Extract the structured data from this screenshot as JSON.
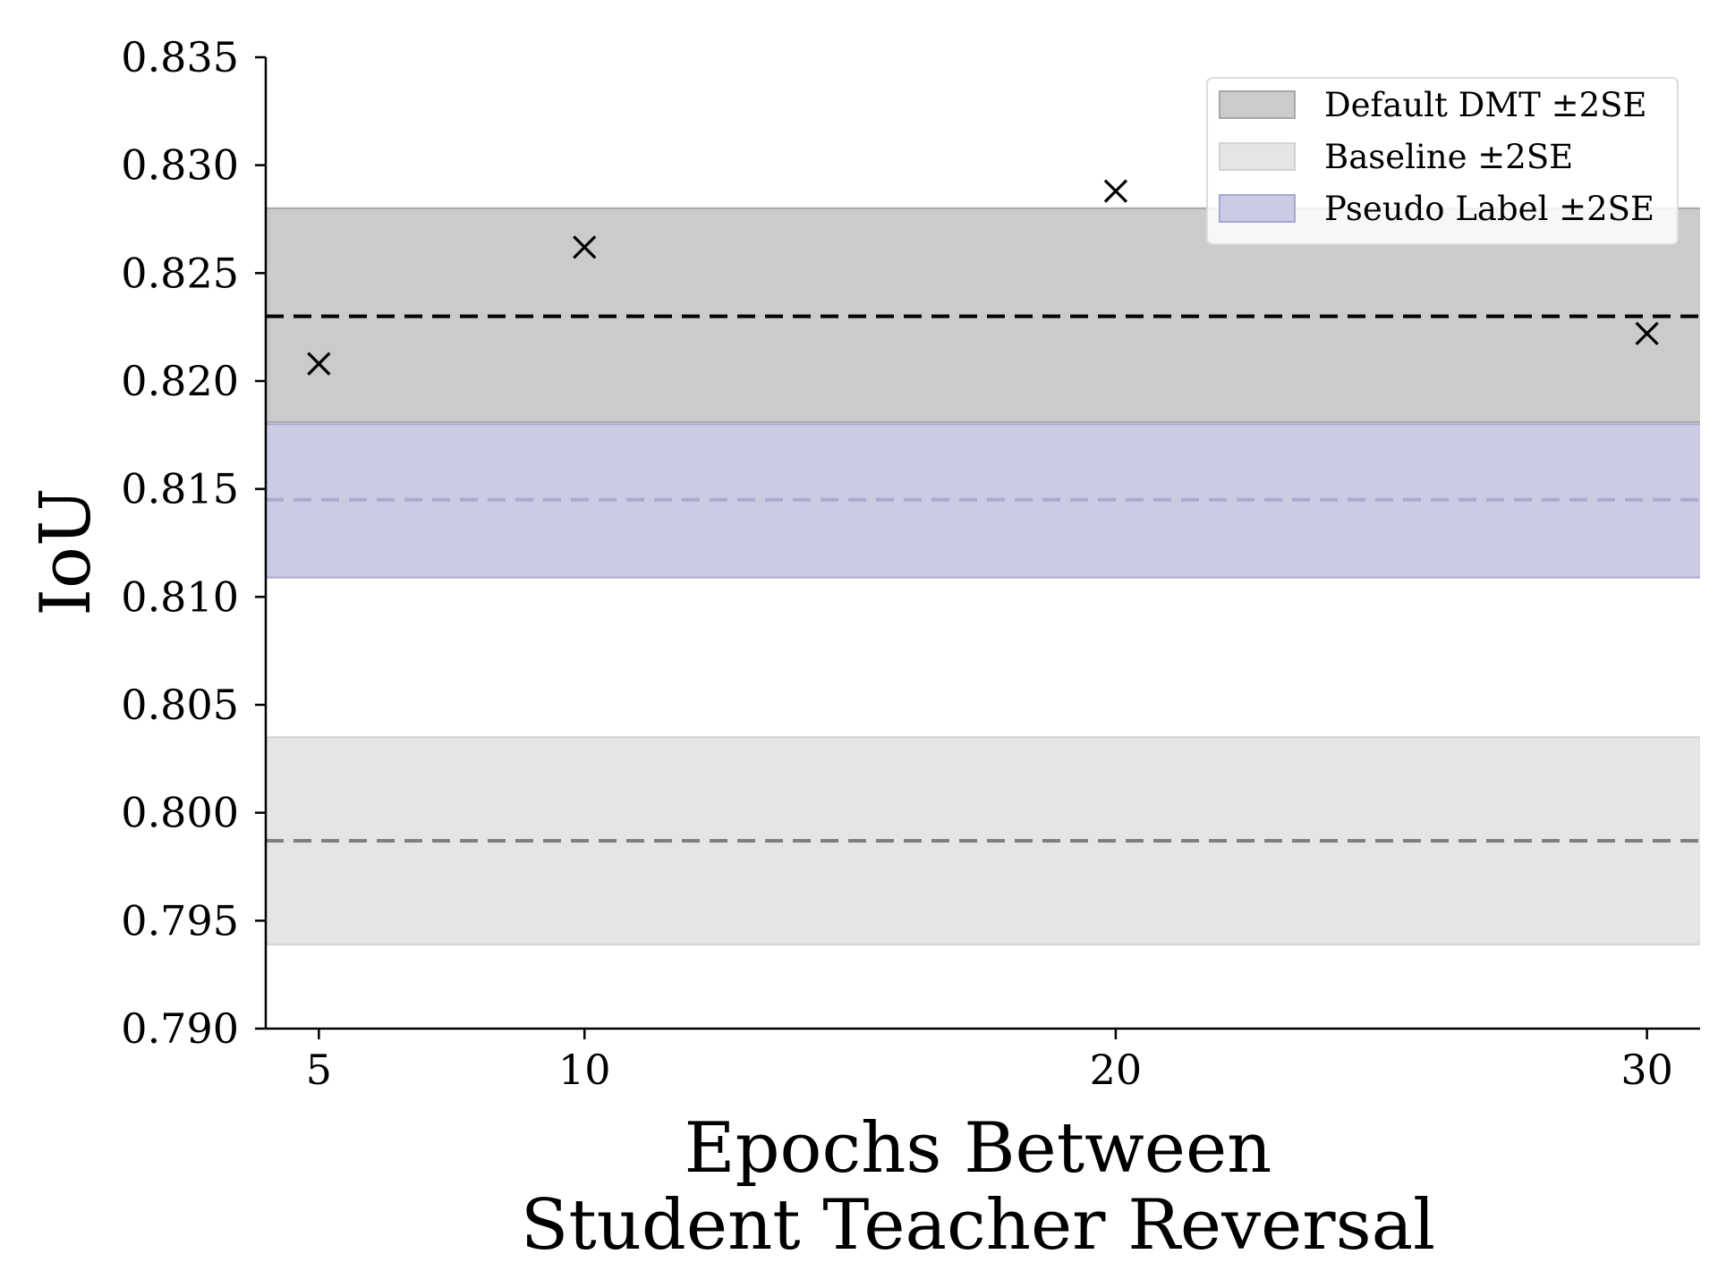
{
  "chart_data": {
    "type": "scatter",
    "title": "",
    "xlabel": [
      "Epochs Between",
      "Student Teacher Reversal"
    ],
    "ylabel": "IoU",
    "x_ticks": [
      5,
      10,
      20,
      30
    ],
    "y_ticks": [
      "0.790",
      "0.795",
      "0.800",
      "0.805",
      "0.810",
      "0.815",
      "0.820",
      "0.825",
      "0.830",
      "0.835"
    ],
    "xlim": [
      4.0,
      31.0
    ],
    "ylim": [
      0.79,
      0.835
    ],
    "grid": false,
    "legend_position": "top-right",
    "points": {
      "marker": "x",
      "color": "#000000",
      "x": [
        5,
        10,
        20,
        30
      ],
      "y": [
        0.8208,
        0.8262,
        0.8288,
        0.8222
      ]
    },
    "bands": [
      {
        "name": "Default DMT ±2SE",
        "mean": 0.823,
        "low": 0.8181,
        "high": 0.828,
        "fill": "#cbcbcb",
        "edge": "#a8a8a8",
        "line": "#000000"
      },
      {
        "name": "Baseline ±2SE",
        "mean": 0.7987,
        "low": 0.7939,
        "high": 0.8035,
        "fill": "#e5e5e5",
        "edge": "#d2d2d2",
        "line": "#7f7f7f"
      },
      {
        "name": "Pseudo Label ±2SE",
        "mean": 0.8145,
        "low": 0.8109,
        "high": 0.818,
        "fill": "#cbcbe3",
        "edge": "#a7a7cf",
        "line": "#a9a9d1"
      }
    ]
  }
}
